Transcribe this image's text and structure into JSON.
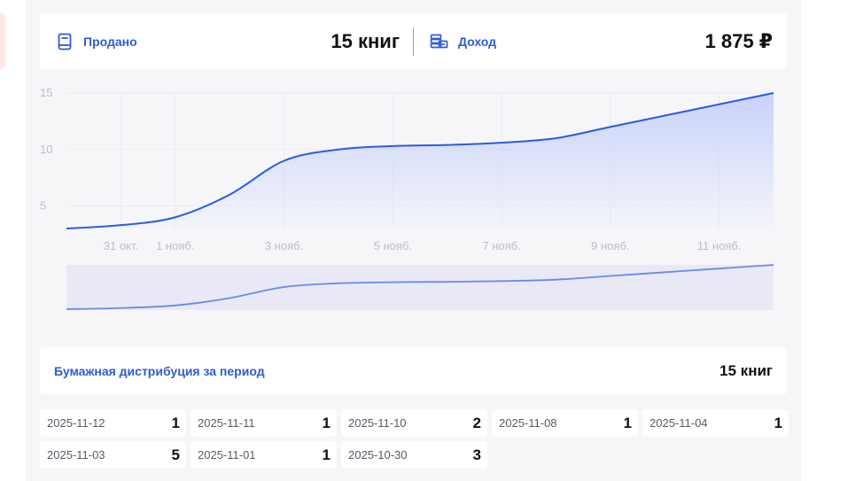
{
  "stats": {
    "sold_label": "Продано",
    "sold_value": "15 книг",
    "income_label": "Доход",
    "income_value": "1 875 ₽"
  },
  "colors": {
    "accent": "#2e5bd6",
    "line": "#2d5ae0",
    "area_top": "#c8d3fb",
    "panel": "#f6f6f9"
  },
  "icons": {
    "sold": "book-icon",
    "income": "coins-stack-icon"
  },
  "chart_data": {
    "type": "area",
    "x": [
      "2025-10-30",
      "2025-10-31",
      "2025-11-01",
      "2025-11-02",
      "2025-11-03",
      "2025-11-04",
      "2025-11-05",
      "2025-11-06",
      "2025-11-07",
      "2025-11-08",
      "2025-11-09",
      "2025-11-10",
      "2025-11-11",
      "2025-11-12"
    ],
    "series": [
      {
        "values": [
          3,
          3.3,
          4,
          6,
          9,
          10,
          10.3,
          10.4,
          10.6,
          11,
          12,
          13,
          14,
          15
        ]
      }
    ],
    "x_tick_labels": [
      "31 окт.",
      "1 нояб.",
      "3 нояб.",
      "5 нояб.",
      "7 нояб.",
      "9 нояб.",
      "11 нояб."
    ],
    "y_tick_labels": [
      "5",
      "10",
      "15"
    ],
    "ylim": [
      3,
      15
    ],
    "grid": true,
    "navigator": true
  },
  "distribution": {
    "title": "Бумажная дистрибуция за период",
    "total": "15 книг",
    "items": [
      {
        "date": "2025-11-12",
        "count": "1"
      },
      {
        "date": "2025-11-11",
        "count": "1"
      },
      {
        "date": "2025-11-10",
        "count": "2"
      },
      {
        "date": "2025-11-08",
        "count": "1"
      },
      {
        "date": "2025-11-04",
        "count": "1"
      },
      {
        "date": "2025-11-03",
        "count": "5"
      },
      {
        "date": "2025-11-01",
        "count": "1"
      },
      {
        "date": "2025-10-30",
        "count": "3"
      }
    ]
  }
}
